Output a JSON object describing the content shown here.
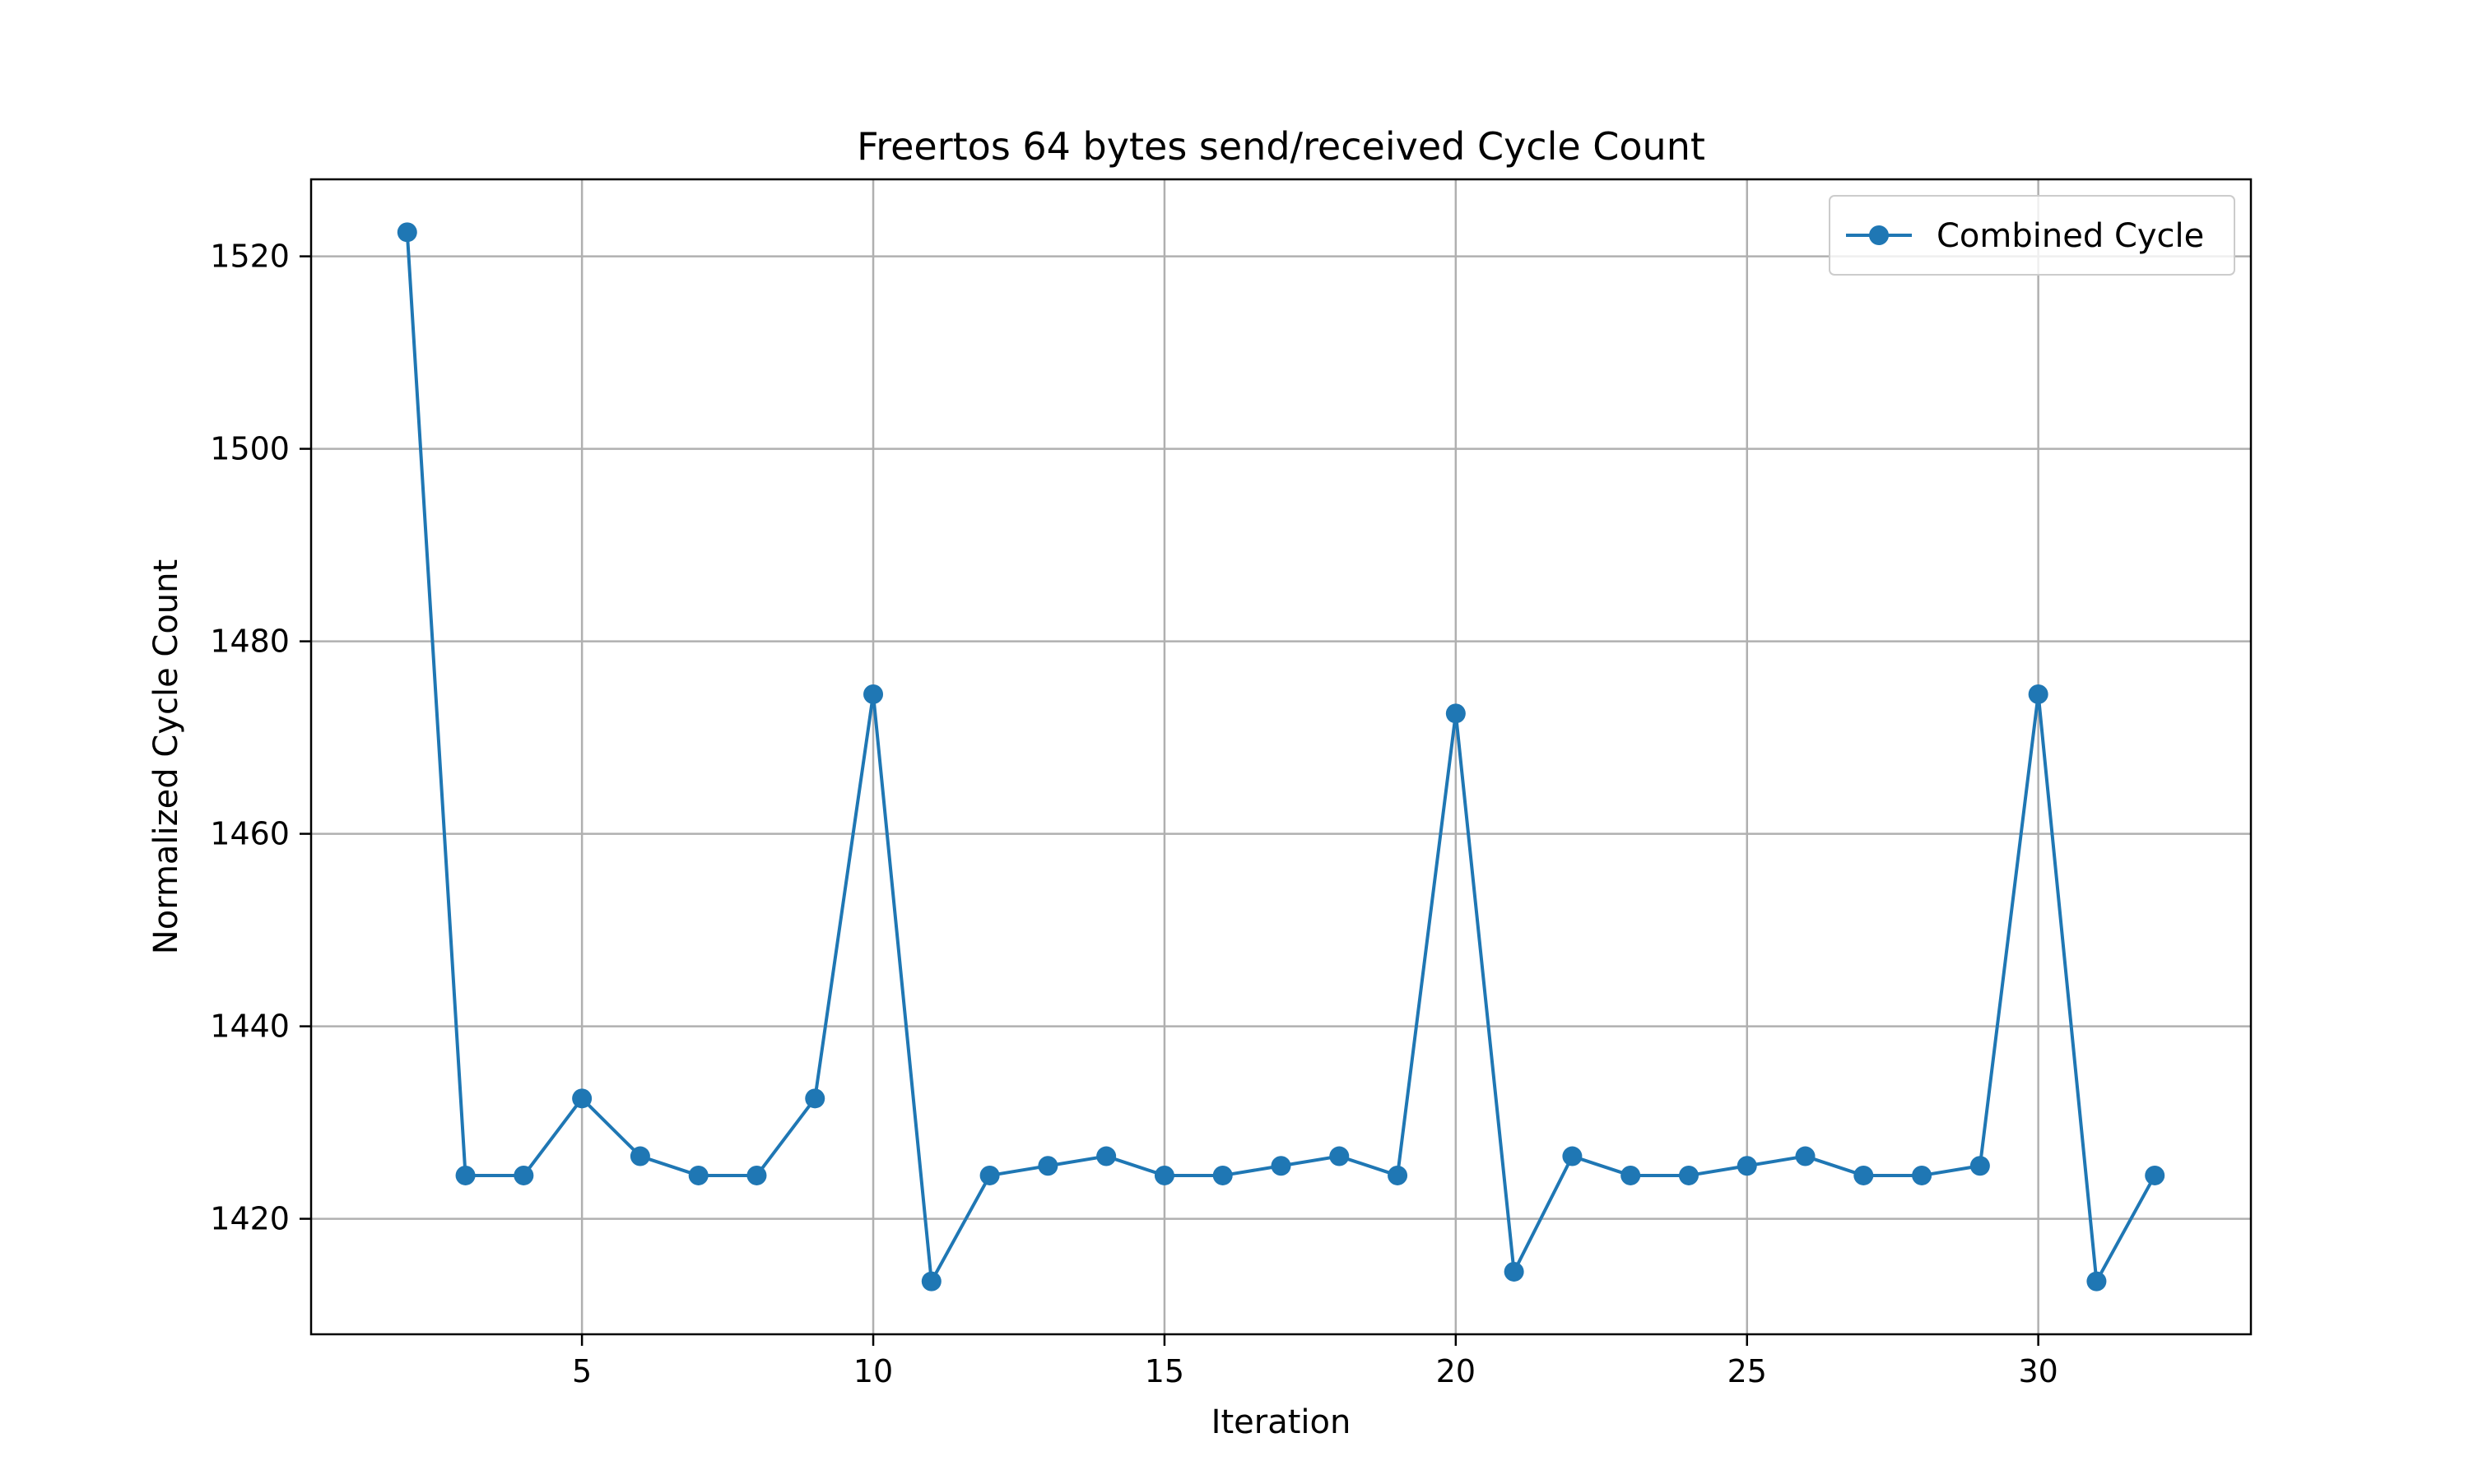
{
  "chart_data": {
    "type": "line",
    "title": "Freertos 64 bytes send/received Cycle Count",
    "xlabel": "Iteration",
    "ylabel": "Normalized Cycle Count",
    "xlim": [
      0.35,
      33.65
    ],
    "ylim": [
      1408,
      1528
    ],
    "xticks": [
      5,
      10,
      15,
      20,
      25,
      30
    ],
    "yticks": [
      1420,
      1440,
      1460,
      1480,
      1500,
      1520
    ],
    "grid": true,
    "legend_position": "upper right",
    "series": [
      {
        "name": "Combined Cycle",
        "color": "#1f77b4",
        "marker": "circle",
        "x": [
          2,
          3,
          4,
          5,
          6,
          7,
          8,
          9,
          10,
          11,
          12,
          13,
          14,
          15,
          16,
          17,
          18,
          19,
          20,
          21,
          22,
          23,
          24,
          25,
          26,
          27,
          28,
          29,
          30,
          31,
          32
        ],
        "y": [
          1522.5,
          1424.5,
          1424.5,
          1432.5,
          1426.5,
          1424.5,
          1424.5,
          1432.5,
          1474.5,
          1413.5,
          1424.5,
          1425.5,
          1426.5,
          1424.5,
          1424.5,
          1425.5,
          1426.5,
          1424.5,
          1472.5,
          1414.5,
          1426.5,
          1424.5,
          1424.5,
          1425.5,
          1426.5,
          1424.5,
          1424.5,
          1425.5,
          1474.5,
          1413.5,
          1424.5
        ]
      }
    ]
  }
}
